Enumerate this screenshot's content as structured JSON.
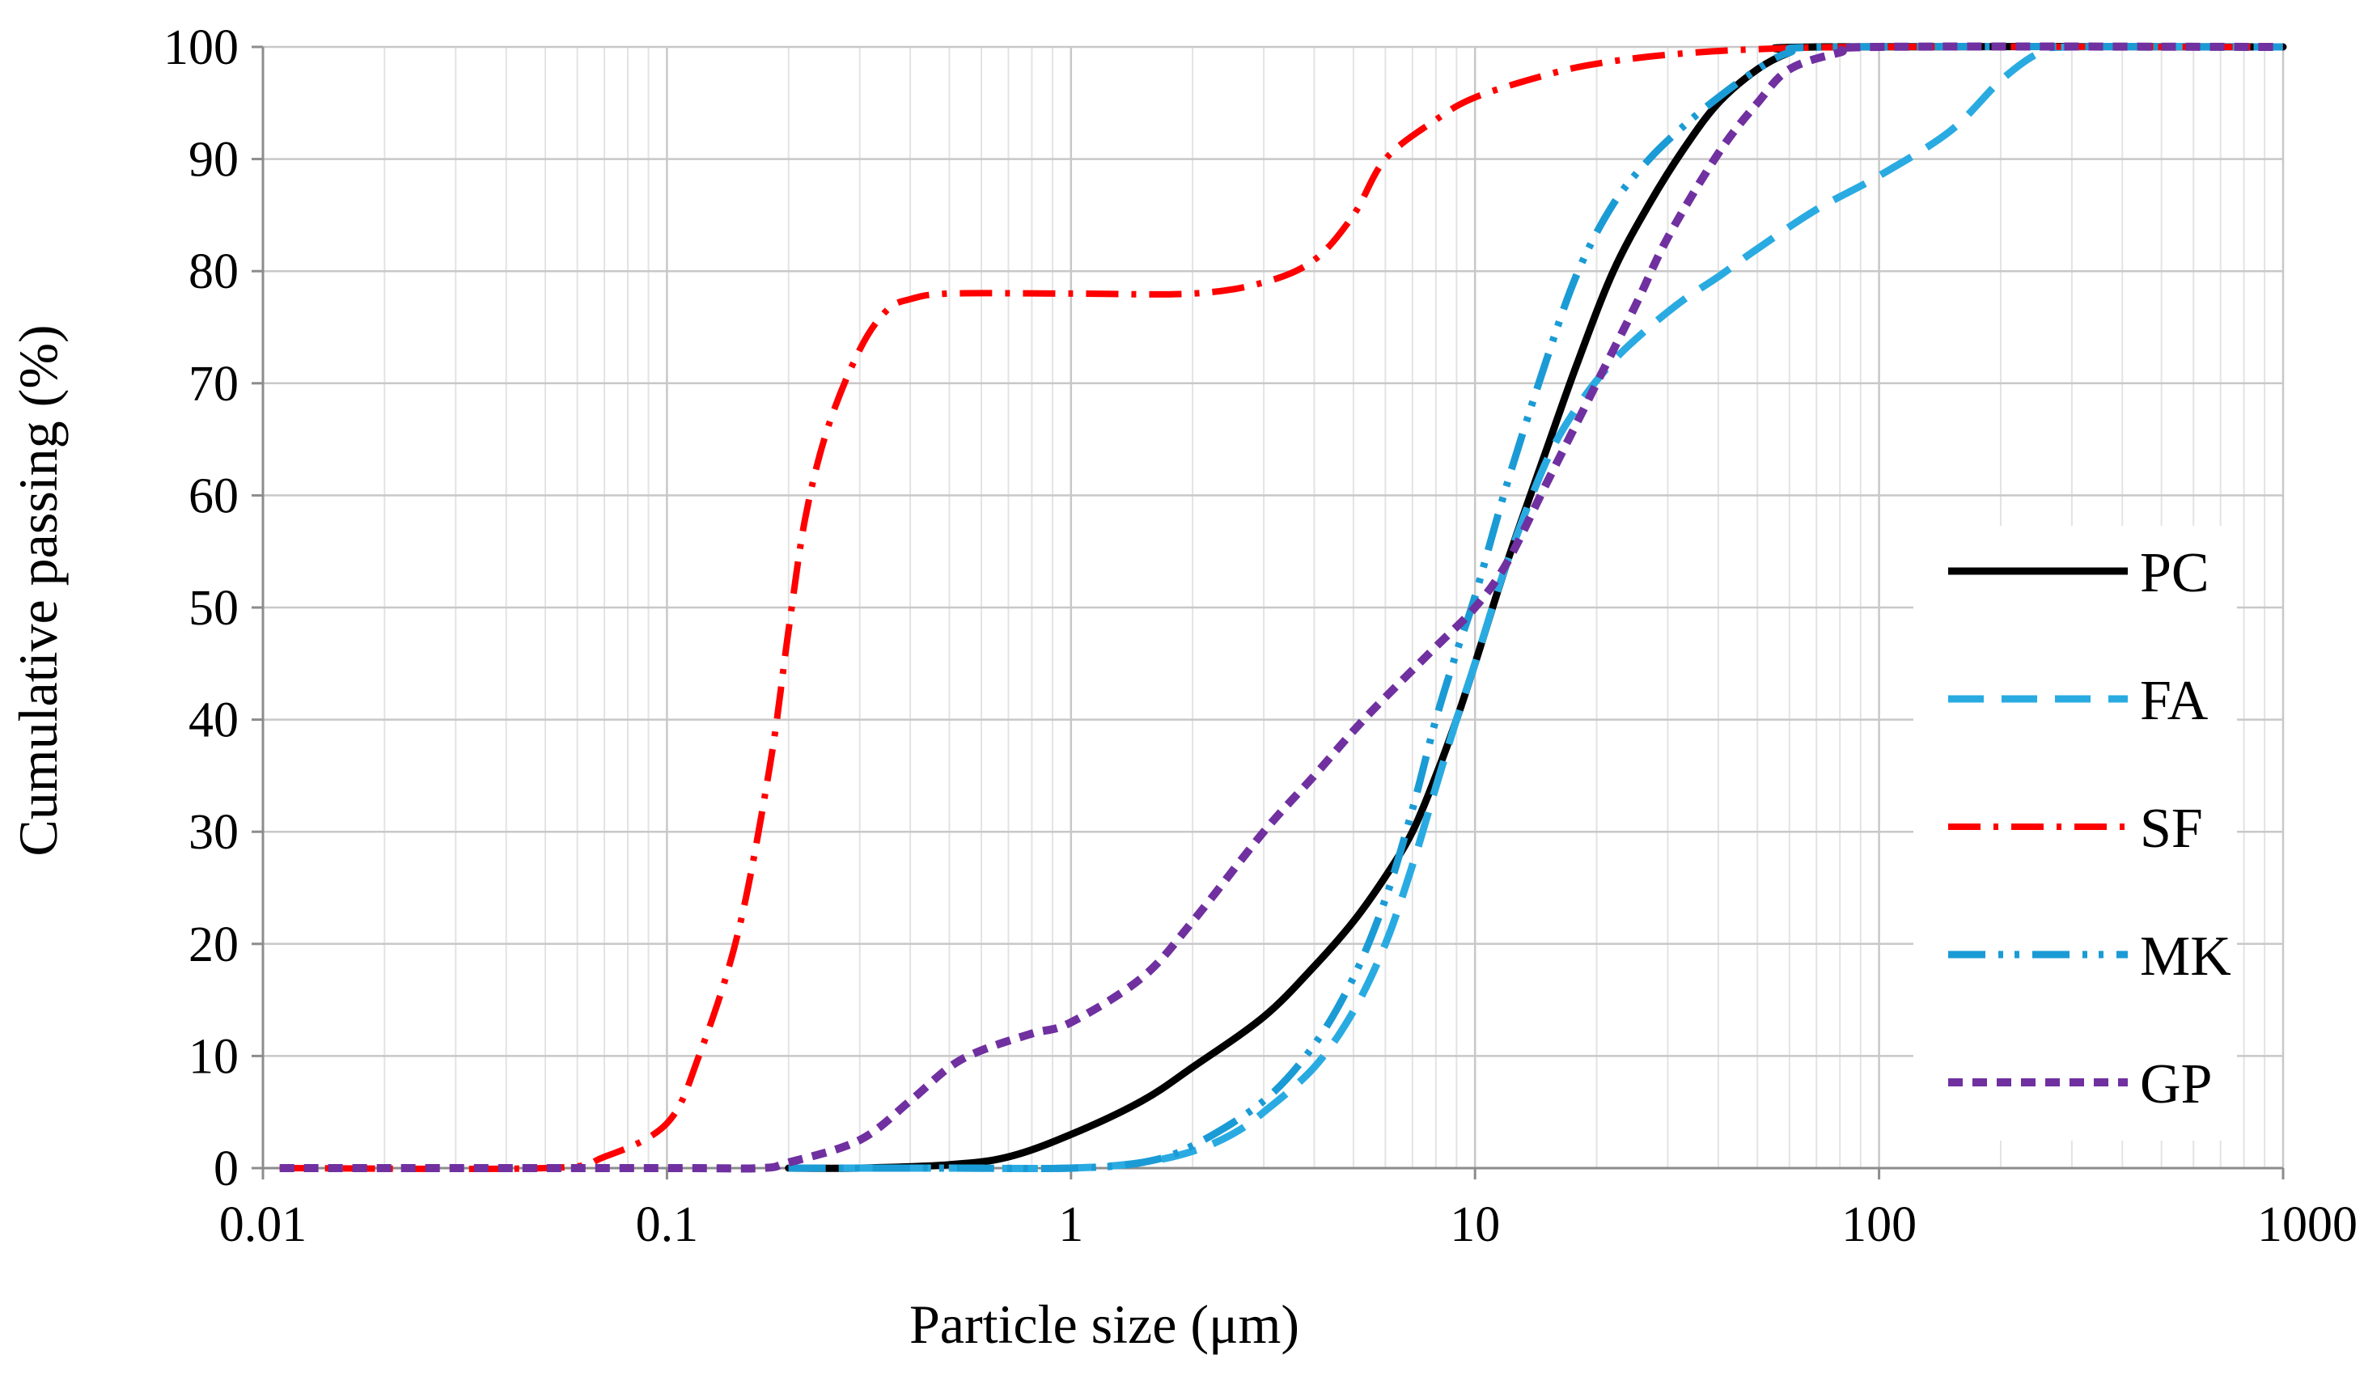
{
  "chart_data": {
    "type": "line",
    "title": "",
    "xlabel": "Particle size (μm)",
    "ylabel": "Cumulative passing (%)",
    "x_scale": "log",
    "xlim": [
      0.01,
      1000
    ],
    "ylim": [
      0,
      100
    ],
    "x_ticks": [
      {
        "value": 0.01,
        "label": "0.01"
      },
      {
        "value": 0.1,
        "label": "0.1"
      },
      {
        "value": 1,
        "label": "1"
      },
      {
        "value": 10,
        "label": "10"
      },
      {
        "value": 100,
        "label": "100"
      },
      {
        "value": 1000,
        "label": "1000"
      }
    ],
    "y_ticks": [
      {
        "value": 0,
        "label": "0"
      },
      {
        "value": 10,
        "label": "10"
      },
      {
        "value": 20,
        "label": "20"
      },
      {
        "value": 30,
        "label": "30"
      },
      {
        "value": 40,
        "label": "40"
      },
      {
        "value": 50,
        "label": "50"
      },
      {
        "value": 60,
        "label": "60"
      },
      {
        "value": 70,
        "label": "70"
      },
      {
        "value": 80,
        "label": "80"
      },
      {
        "value": 90,
        "label": "90"
      },
      {
        "value": 100,
        "label": "100"
      }
    ],
    "grid": {
      "major": true,
      "minor_x": true
    },
    "legend": {
      "position": "right",
      "entries": [
        "PC",
        "FA",
        "SF",
        "MK",
        "GP"
      ]
    },
    "series": [
      {
        "name": "PC",
        "color": "#000000",
        "line_style": "solid",
        "points": [
          [
            0.2,
            0
          ],
          [
            0.3,
            0
          ],
          [
            0.5,
            0.3
          ],
          [
            0.7,
            1
          ],
          [
            1.0,
            3
          ],
          [
            1.5,
            6
          ],
          [
            2.0,
            9
          ],
          [
            3.0,
            13.5
          ],
          [
            4.0,
            18
          ],
          [
            5.0,
            22
          ],
          [
            6.0,
            26
          ],
          [
            7.0,
            30
          ],
          [
            8.0,
            35
          ],
          [
            9.0,
            40
          ],
          [
            10.0,
            45
          ],
          [
            12.0,
            54
          ],
          [
            15.0,
            64
          ],
          [
            18.0,
            72
          ],
          [
            22.0,
            80
          ],
          [
            27.0,
            86
          ],
          [
            33.0,
            91
          ],
          [
            40.0,
            95
          ],
          [
            50.0,
            98
          ],
          [
            60.0,
            99.5
          ],
          [
            70.0,
            100
          ],
          [
            1000,
            100
          ]
        ]
      },
      {
        "name": "FA",
        "color": "#29ABE2",
        "line_style": "dashed",
        "points": [
          [
            0.2,
            0
          ],
          [
            0.5,
            0
          ],
          [
            1.0,
            0
          ],
          [
            1.5,
            0.5
          ],
          [
            2.0,
            1.5
          ],
          [
            2.5,
            3
          ],
          [
            3.0,
            5
          ],
          [
            4.0,
            9
          ],
          [
            5.0,
            14
          ],
          [
            6.0,
            20
          ],
          [
            7.0,
            27
          ],
          [
            8.0,
            34
          ],
          [
            9.0,
            40
          ],
          [
            10.0,
            45
          ],
          [
            12.0,
            54
          ],
          [
            15.0,
            63
          ],
          [
            18.0,
            68
          ],
          [
            22.0,
            72
          ],
          [
            27.0,
            75
          ],
          [
            33.0,
            77.5
          ],
          [
            40.0,
            79.5
          ],
          [
            50.0,
            82
          ],
          [
            70.0,
            85.5
          ],
          [
            100.0,
            88.5
          ],
          [
            150.0,
            92.5
          ],
          [
            200.0,
            97
          ],
          [
            250.0,
            99.5
          ],
          [
            300.0,
            100
          ],
          [
            1000,
            100
          ]
        ]
      },
      {
        "name": "SF",
        "color": "#FF0000",
        "line_style": "dashdot",
        "points": [
          [
            0.011,
            0
          ],
          [
            0.05,
            0
          ],
          [
            0.07,
            1
          ],
          [
            0.1,
            4
          ],
          [
            0.12,
            10
          ],
          [
            0.15,
            21
          ],
          [
            0.18,
            36
          ],
          [
            0.2,
            48
          ],
          [
            0.22,
            58
          ],
          [
            0.25,
            66
          ],
          [
            0.3,
            73
          ],
          [
            0.35,
            76.5
          ],
          [
            0.4,
            77.5
          ],
          [
            0.5,
            78
          ],
          [
            1.0,
            78
          ],
          [
            2.0,
            78
          ],
          [
            3.0,
            79
          ],
          [
            4.0,
            81
          ],
          [
            5.0,
            85
          ],
          [
            6.0,
            90
          ],
          [
            8.0,
            93.5
          ],
          [
            10.0,
            95.5
          ],
          [
            15.0,
            97.5
          ],
          [
            20.0,
            98.5
          ],
          [
            30.0,
            99.3
          ],
          [
            50.0,
            99.8
          ],
          [
            100.0,
            100
          ],
          [
            1000,
            100
          ]
        ]
      },
      {
        "name": "MK",
        "color": "#1B9BD5",
        "line_style": "dashdotdot",
        "points": [
          [
            0.2,
            0
          ],
          [
            0.5,
            0
          ],
          [
            1.0,
            0
          ],
          [
            1.5,
            0.5
          ],
          [
            2.0,
            2
          ],
          [
            3.0,
            6
          ],
          [
            4.0,
            11
          ],
          [
            5.0,
            17
          ],
          [
            6.0,
            24
          ],
          [
            7.0,
            32
          ],
          [
            8.0,
            40
          ],
          [
            9.0,
            46
          ],
          [
            10.0,
            51
          ],
          [
            12.0,
            61
          ],
          [
            15.0,
            72
          ],
          [
            18.0,
            80
          ],
          [
            22.0,
            86
          ],
          [
            27.0,
            90
          ],
          [
            33.0,
            93
          ],
          [
            40.0,
            95.5
          ],
          [
            50.0,
            98
          ],
          [
            60.0,
            99.5
          ],
          [
            80.0,
            100
          ],
          [
            1000,
            100
          ]
        ]
      },
      {
        "name": "GP",
        "color": "#7030A0",
        "line_style": "dotted",
        "points": [
          [
            0.011,
            0
          ],
          [
            0.1,
            0
          ],
          [
            0.17,
            0
          ],
          [
            0.2,
            0.5
          ],
          [
            0.3,
            2.5
          ],
          [
            0.4,
            6
          ],
          [
            0.5,
            9
          ],
          [
            0.6,
            10.5
          ],
          [
            0.8,
            12
          ],
          [
            1.0,
            13
          ],
          [
            1.5,
            17
          ],
          [
            2.0,
            22
          ],
          [
            3.0,
            30
          ],
          [
            4.0,
            35
          ],
          [
            5.0,
            39
          ],
          [
            6.0,
            42
          ],
          [
            8.0,
            46.5
          ],
          [
            10.0,
            50
          ],
          [
            12.0,
            54
          ],
          [
            15.0,
            61
          ],
          [
            20.0,
            70
          ],
          [
            25.0,
            77
          ],
          [
            30.0,
            83
          ],
          [
            40.0,
            90.5
          ],
          [
            50.0,
            95
          ],
          [
            60.0,
            98
          ],
          [
            80.0,
            99.5
          ],
          [
            100.0,
            100
          ],
          [
            1000,
            100
          ]
        ]
      }
    ]
  }
}
